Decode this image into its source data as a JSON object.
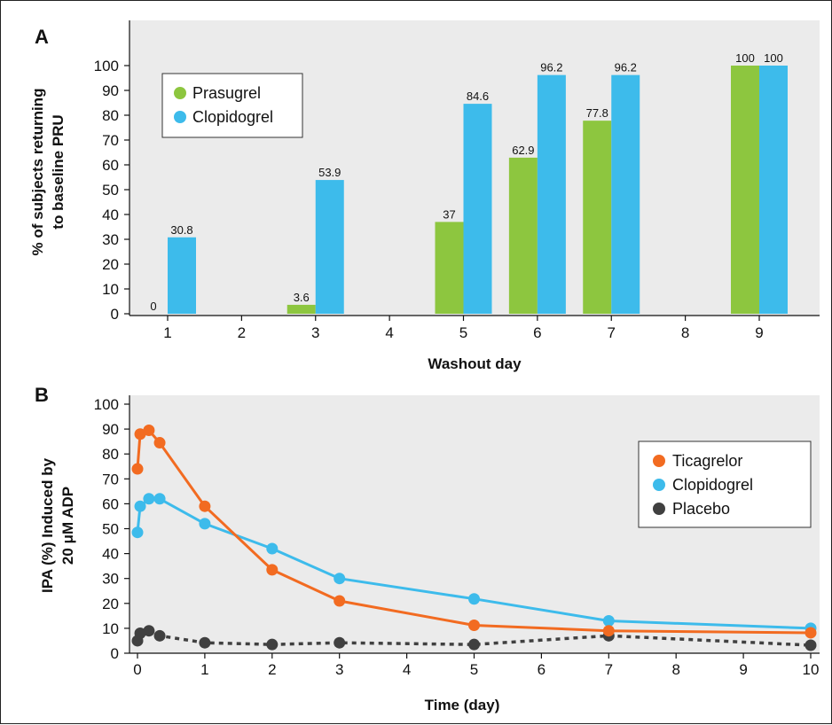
{
  "chart_data": [
    {
      "panel": "A",
      "type": "bar",
      "xlabel": "Washout day",
      "ylabel_lines": [
        "% of subjects returning",
        "to baseline PRU"
      ],
      "categories": [
        "1",
        "2",
        "3",
        "4",
        "5",
        "6",
        "7",
        "8",
        "9"
      ],
      "ylim": [
        0,
        100
      ],
      "yticks": [
        0,
        10,
        20,
        30,
        40,
        50,
        60,
        70,
        80,
        90,
        100
      ],
      "legend_position": "top-left",
      "grid": false,
      "series": [
        {
          "name": "Prasugrel",
          "color": "#8dc63f",
          "values": [
            0,
            null,
            3.6,
            null,
            37,
            62.9,
            77.8,
            null,
            100
          ],
          "labels": [
            "0",
            "",
            "3.6",
            "",
            "37",
            "62.9",
            "77.8",
            "",
            "100"
          ]
        },
        {
          "name": "Clopidogrel",
          "color": "#3dbbeb",
          "values": [
            30.8,
            null,
            53.9,
            null,
            84.6,
            96.2,
            96.2,
            null,
            100
          ],
          "labels": [
            "30.8",
            "",
            "53.9",
            "",
            "84.6",
            "96.2",
            "96.2",
            "",
            "100"
          ]
        }
      ]
    },
    {
      "panel": "B",
      "type": "line",
      "xlabel": "Time (day)",
      "ylabel_lines": [
        "IPA (%) Induced by",
        "20 μM ADP"
      ],
      "xlim": [
        0,
        10
      ],
      "ylim": [
        0,
        100
      ],
      "xticks": [
        0,
        1,
        2,
        3,
        4,
        5,
        6,
        7,
        8,
        9,
        10
      ],
      "yticks": [
        0,
        10,
        20,
        30,
        40,
        50,
        60,
        70,
        80,
        90,
        100
      ],
      "legend_position": "right",
      "grid": false,
      "series": [
        {
          "name": "Ticagrelor",
          "color": "#f26b21",
          "dashed": false,
          "x": [
            0,
            0.04,
            0.17,
            0.33,
            1,
            2,
            3,
            5,
            7,
            10
          ],
          "y": [
            74,
            88,
            89.5,
            84.5,
            59,
            33.5,
            21,
            11.2,
            9,
            8.2
          ]
        },
        {
          "name": "Clopidogrel",
          "color": "#3dbbeb",
          "dashed": false,
          "x": [
            0,
            0.04,
            0.17,
            0.33,
            1,
            2,
            3,
            5,
            7,
            10
          ],
          "y": [
            48.5,
            59,
            62,
            62,
            52,
            42,
            30,
            21.8,
            13,
            10
          ]
        },
        {
          "name": "Placebo",
          "color": "#404040",
          "dashed": true,
          "x": [
            0,
            0.04,
            0.17,
            0.33,
            1,
            2,
            3,
            5,
            7,
            10
          ],
          "y": [
            5,
            8,
            9,
            7,
            4.2,
            3.5,
            4.2,
            3.5,
            7,
            3.2
          ]
        }
      ]
    }
  ]
}
